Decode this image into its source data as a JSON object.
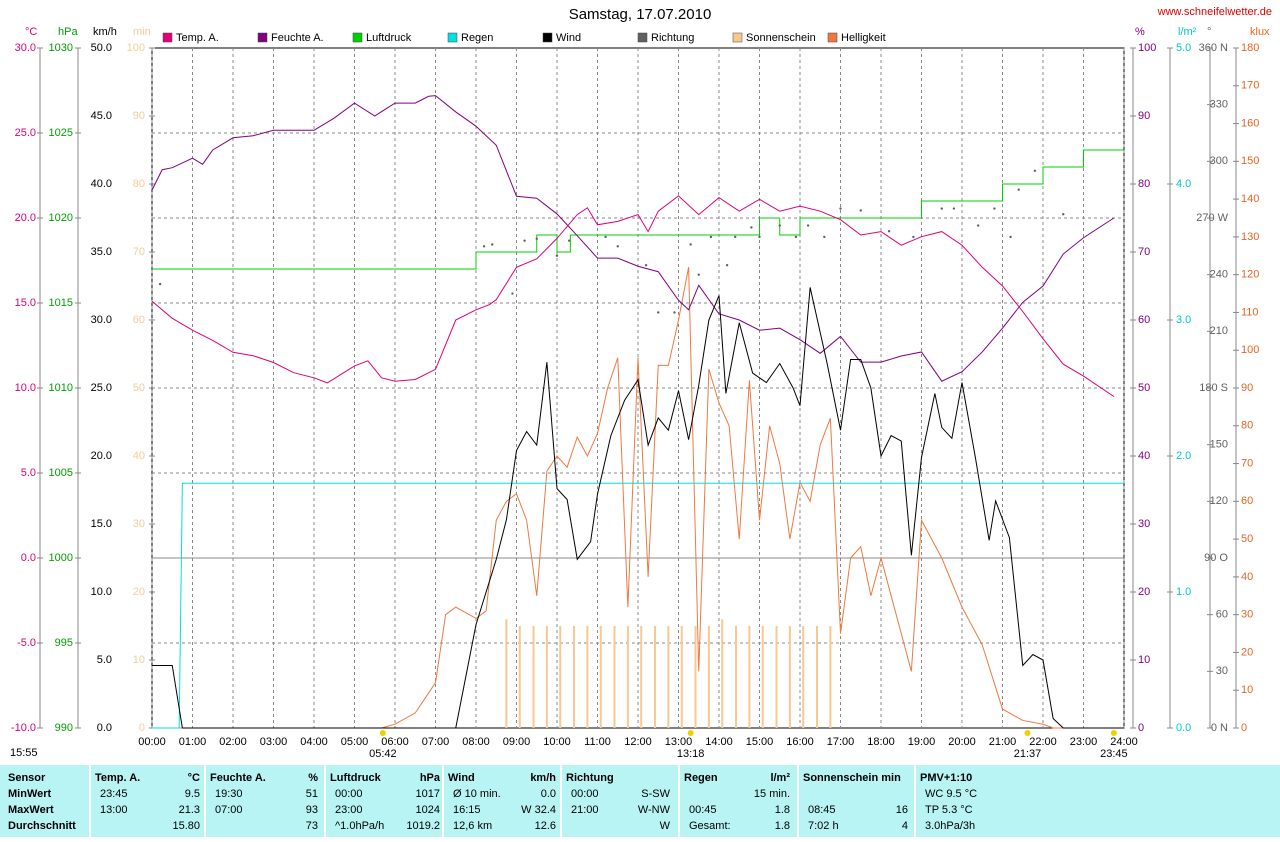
{
  "chart_data": {
    "type": "line",
    "title": "Samstag, 17.07.2010",
    "source": "www.schneifelwetter.de",
    "updated": "15:55",
    "xlim": [
      0,
      24
    ],
    "xticks": [
      {
        "value": 0,
        "label": "00:00"
      },
      {
        "value": 1,
        "label": "01:00"
      },
      {
        "value": 2,
        "label": "02:00"
      },
      {
        "value": 3,
        "label": "03:00"
      },
      {
        "value": 4,
        "label": "04:00"
      },
      {
        "value": 5,
        "label": "05:00"
      },
      {
        "value": 6,
        "label": "06:00"
      },
      {
        "value": 7,
        "label": "07:00"
      },
      {
        "value": 8,
        "label": "08:00"
      },
      {
        "value": 9,
        "label": "09:00"
      },
      {
        "value": 10,
        "label": "10:00"
      },
      {
        "value": 11,
        "label": "11:00"
      },
      {
        "value": 12,
        "label": "12:00"
      },
      {
        "value": 13,
        "label": "13:00"
      },
      {
        "value": 14,
        "label": "14:00"
      },
      {
        "value": 15,
        "label": "15:00"
      },
      {
        "value": 16,
        "label": "16:00"
      },
      {
        "value": 17,
        "label": "17:00"
      },
      {
        "value": 18,
        "label": "18:00"
      },
      {
        "value": 19,
        "label": "19:00"
      },
      {
        "value": 20,
        "label": "20:00"
      },
      {
        "value": 21,
        "label": "21:00"
      },
      {
        "value": 22,
        "label": "22:00"
      },
      {
        "value": 23,
        "label": "23:00"
      },
      {
        "value": 24,
        "label": "24:00"
      }
    ],
    "grid": true,
    "axes": [
      {
        "label": "°C",
        "side": "left",
        "color": "#e0007a",
        "lim": [
          -10,
          30
        ],
        "ticks": [
          {
            "value": -10,
            "label": "-10.0"
          },
          {
            "value": -5,
            "label": "-5.0"
          },
          {
            "value": 0,
            "label": "0.0"
          },
          {
            "value": 5,
            "label": "5.0"
          },
          {
            "value": 10,
            "label": "10.0"
          },
          {
            "value": 15,
            "label": "15.0"
          },
          {
            "value": 20,
            "label": "20.0"
          },
          {
            "value": 25,
            "label": "25.0"
          },
          {
            "value": 30,
            "label": "30.0"
          }
        ]
      },
      {
        "label": "hPa",
        "side": "left",
        "color": "#00a000",
        "lim": [
          990,
          1030
        ],
        "ticks": [
          990,
          995,
          1000,
          1005,
          1010,
          1015,
          1020,
          1025,
          1030
        ]
      },
      {
        "label": "km/h",
        "side": "left",
        "color": "#000000",
        "lim": [
          0,
          50
        ],
        "ticks": [
          {
            "value": 0,
            "label": "0.0"
          },
          {
            "value": 5,
            "label": "5.0"
          },
          {
            "value": 10,
            "label": "10.0"
          },
          {
            "value": 15,
            "label": "15.0"
          },
          {
            "value": 20,
            "label": "20.0"
          },
          {
            "value": 25,
            "label": "25.0"
          },
          {
            "value": 30,
            "label": "30.0"
          },
          {
            "value": 35,
            "label": "35.0"
          },
          {
            "value": 40,
            "label": "40.0"
          },
          {
            "value": 45,
            "label": "45.0"
          },
          {
            "value": 50,
            "label": "50.0"
          }
        ]
      },
      {
        "label": "min",
        "side": "left",
        "color": "#f5cc98",
        "lim": [
          0,
          100
        ],
        "ticks": [
          0,
          10,
          20,
          30,
          40,
          50,
          60,
          70,
          80,
          90,
          100
        ]
      },
      {
        "label": "%",
        "side": "right",
        "color": "#800080",
        "lim": [
          0,
          100
        ],
        "ticks": [
          0,
          10,
          20,
          30,
          40,
          50,
          60,
          70,
          80,
          90,
          100
        ]
      },
      {
        "label": "l/m²",
        "side": "right",
        "color": "#00c8c8",
        "lim": [
          0,
          5
        ],
        "ticks": [
          {
            "value": 0,
            "label": "0.0"
          },
          {
            "value": 1,
            "label": "1.0"
          },
          {
            "value": 2,
            "label": "2.0"
          },
          {
            "value": 3,
            "label": "3.0"
          },
          {
            "value": 4,
            "label": "4.0"
          },
          {
            "value": 5,
            "label": "5.0"
          }
        ]
      },
      {
        "label": "°",
        "side": "right",
        "color": "#606060",
        "lim": [
          0,
          360
        ],
        "ticks": [
          {
            "value": 0,
            "label": "0 N"
          },
          30,
          60,
          {
            "value": 90,
            "label": "90 O"
          },
          120,
          150,
          {
            "value": 180,
            "label": "180 S"
          },
          210,
          240,
          {
            "value": 270,
            "label": "270 W"
          },
          300,
          330,
          {
            "value": 360,
            "label": "360 N"
          }
        ]
      },
      {
        "label": "klux",
        "side": "right",
        "color": "#e86420",
        "lim": [
          0,
          180
        ],
        "ticks": [
          0,
          10,
          20,
          30,
          40,
          50,
          60,
          70,
          80,
          90,
          100,
          110,
          120,
          130,
          140,
          150,
          160,
          170,
          180
        ]
      }
    ],
    "series": [
      {
        "name": "Temp. A.",
        "color": "#e0007a",
        "axis": 0,
        "style": "line",
        "x": [
          0,
          0.5,
          1,
          1.5,
          2,
          2.5,
          3,
          3.5,
          4,
          4.33,
          5,
          5.33,
          5.67,
          6,
          6.5,
          7,
          7.5,
          8,
          8.33,
          8.5,
          9,
          9.5,
          10,
          10.5,
          10.75,
          11,
          11.5,
          12,
          12.25,
          12.5,
          13,
          13.5,
          14,
          14.5,
          15,
          15.5,
          16,
          16.5,
          17,
          17.5,
          18,
          18.5,
          19,
          19.5,
          20,
          20.5,
          21,
          21.5,
          22,
          22.5,
          23,
          23.75
        ],
        "values": [
          15.1,
          14.1,
          13.4,
          12.8,
          12.1,
          11.9,
          11.5,
          10.9,
          10.6,
          10.3,
          11.3,
          11.6,
          10.6,
          10.4,
          10.5,
          11.1,
          14.0,
          14.6,
          14.9,
          15.2,
          17.1,
          17.6,
          18.8,
          20.2,
          20.6,
          19.6,
          19.8,
          20.2,
          19.2,
          20.4,
          21.3,
          20.2,
          21.2,
          20.4,
          21.1,
          20.4,
          20.7,
          20.4,
          19.9,
          19.0,
          19.2,
          18.4,
          18.9,
          19.2,
          18.4,
          17.1,
          16.0,
          14.5,
          12.9,
          11.4,
          10.7,
          9.5
        ]
      },
      {
        "name": "Feuchte A.",
        "color": "#800080",
        "axis": 4,
        "style": "line",
        "x": [
          0,
          0.25,
          0.5,
          1,
          1.25,
          1.5,
          2,
          2.5,
          3,
          3.5,
          4,
          4.5,
          5,
          5.5,
          6,
          6.5,
          6.83,
          7,
          7.5,
          8,
          8.5,
          9,
          9.5,
          10,
          10.5,
          11,
          11.5,
          12,
          12.5,
          13,
          13.25,
          13.5,
          14,
          14.5,
          15,
          15.5,
          16,
          16.5,
          17,
          17.5,
          18,
          18.5,
          19,
          19.5,
          20,
          20.5,
          21,
          21.5,
          22,
          22.5,
          23,
          23.75
        ],
        "values": [
          79.1,
          82.1,
          82.4,
          83.8,
          82.9,
          85.0,
          86.8,
          87.1,
          87.9,
          87.9,
          87.9,
          89.7,
          91.9,
          90.0,
          91.9,
          91.9,
          92.9,
          93,
          90.6,
          88.5,
          85.7,
          78.2,
          77.9,
          75.6,
          72.4,
          69.1,
          69.1,
          67.9,
          67.1,
          62.9,
          61.5,
          65.1,
          60.9,
          60.0,
          58.5,
          58.8,
          57.1,
          55.1,
          57.6,
          53.8,
          53.8,
          54.7,
          55.3,
          51,
          52.4,
          55.3,
          58.8,
          62.6,
          65.0,
          69.7,
          72.1,
          75.0
        ]
      },
      {
        "name": "Luftdruck",
        "color": "#00d000",
        "axis": 1,
        "style": "step",
        "x": [
          0,
          8,
          9.5,
          10,
          10.33,
          15,
          15.5,
          16,
          19,
          21,
          22,
          23,
          24
        ],
        "values": [
          1017,
          1018,
          1019,
          1018,
          1019,
          1020,
          1019,
          1020,
          1021,
          1022,
          1023,
          1024,
          1024
        ]
      },
      {
        "name": "Regen",
        "color": "#00e0e0",
        "axis": 5,
        "style": "line",
        "x": [
          0,
          0.67,
          0.75,
          24
        ],
        "values": [
          0,
          0,
          1.8,
          1.8
        ]
      },
      {
        "name": "Wind",
        "color": "#000000",
        "axis": 2,
        "style": "line",
        "x": [
          0,
          0.5,
          0.75,
          7.5,
          8,
          8.5,
          8.75,
          9,
          9.25,
          9.5,
          9.75,
          10,
          10.25,
          10.5,
          10.83,
          11,
          11.33,
          11.67,
          12,
          12.25,
          12.5,
          12.75,
          13,
          13.25,
          13.5,
          13.75,
          14,
          14.17,
          14.5,
          14.83,
          15.17,
          15.5,
          15.83,
          16,
          16.25,
          16.67,
          17,
          17.25,
          17.5,
          17.75,
          18,
          18.25,
          18.5,
          18.75,
          19,
          19.33,
          19.5,
          19.75,
          20,
          20.33,
          20.67,
          20.83,
          21.17,
          21.5,
          21.75,
          22,
          22.25,
          22.5,
          24
        ],
        "values": [
          4.6,
          4.6,
          0,
          0,
          7.6,
          12.4,
          15.3,
          20.4,
          21.8,
          20.8,
          26.9,
          17.6,
          16.8,
          12.4,
          13.7,
          17.2,
          21.5,
          24.1,
          25.6,
          20.8,
          22.8,
          21.9,
          24.8,
          21.2,
          25.2,
          30.0,
          31.8,
          24.6,
          29.8,
          26.1,
          25.4,
          26.8,
          25.0,
          23.7,
          32.4,
          26.8,
          21.9,
          27.1,
          27.1,
          25.0,
          20.0,
          21.5,
          21.1,
          12.7,
          19.9,
          24.6,
          22.1,
          21.3,
          25.4,
          19.9,
          13.8,
          16.7,
          14.0,
          4.6,
          5.4,
          5.0,
          0.7,
          0,
          0
        ]
      },
      {
        "name": "Richtung",
        "color": "#606060",
        "axis": 6,
        "style": "dots",
        "x": [
          0.2,
          8.2,
          8.4,
          8.9,
          9.2,
          9.5,
          10,
          10.3,
          11.2,
          11.5,
          12.2,
          12.5,
          12.9,
          13.3,
          13.5,
          13.8,
          14.2,
          14.4,
          14.8,
          15,
          15.5,
          15.9,
          16.2,
          16.6,
          17,
          17.5,
          18.2,
          18.8,
          19.5,
          19.8,
          20.4,
          20.8,
          21.2,
          21.4,
          21.8,
          22.5
        ],
        "values": [
          235,
          255,
          256,
          230,
          258,
          259,
          250,
          258,
          260,
          255,
          245,
          220,
          220,
          256,
          240,
          260,
          245,
          260,
          265,
          260,
          266,
          260,
          266,
          260,
          275,
          274,
          263,
          260,
          275,
          275,
          266,
          275,
          260,
          285,
          295,
          272
        ]
      },
      {
        "name": "Sonnenschein",
        "color": "#f8c890",
        "axis": 3,
        "style": "bar",
        "x": [
          8.75,
          9.08,
          9.42,
          9.75,
          10.08,
          10.42,
          10.75,
          11.08,
          11.42,
          11.75,
          12.08,
          12.42,
          12.75,
          13.08,
          13.42,
          13.75,
          14.08,
          14.42,
          14.75,
          15.08,
          15.42,
          15.75,
          16.08,
          16.42,
          16.75
        ],
        "values": [
          16,
          15,
          15,
          15,
          15,
          15,
          15,
          15,
          15,
          15,
          15,
          15,
          15,
          15,
          15,
          15,
          16,
          15,
          15,
          15,
          15,
          15,
          15,
          15,
          15
        ]
      },
      {
        "name": "Helligkeit",
        "color": "#f07840",
        "axis": 7,
        "style": "line",
        "x": [
          0,
          5.67,
          6,
          6.5,
          7,
          7.25,
          7.5,
          8,
          8.25,
          8.5,
          8.75,
          9,
          9.25,
          9.5,
          9.75,
          10,
          10.25,
          10.5,
          10.75,
          11,
          11.25,
          11.5,
          11.75,
          12,
          12.25,
          12.5,
          12.75,
          13,
          13.25,
          13.5,
          13.75,
          14,
          14.25,
          14.5,
          14.75,
          15,
          15.25,
          15.5,
          15.75,
          16,
          16.25,
          16.5,
          16.75,
          17,
          17.25,
          17.5,
          17.75,
          18,
          18.5,
          18.75,
          19,
          19.5,
          20,
          20.5,
          21,
          21.5,
          22,
          22.25,
          24
        ],
        "values": [
          0,
          0,
          1,
          4,
          12,
          30,
          32,
          29,
          31,
          55,
          60,
          62,
          55,
          35,
          68,
          72,
          69,
          77,
          72,
          78,
          90,
          98,
          32,
          98,
          40,
          96,
          96,
          108,
          122,
          15,
          95,
          86,
          80,
          50,
          92,
          55,
          80,
          70,
          50,
          65,
          60,
          75,
          82,
          25,
          45,
          48,
          35,
          45,
          25,
          15,
          55,
          45,
          32,
          22,
          5,
          2,
          1,
          0,
          0
        ]
      }
    ],
    "annotations": [
      {
        "x": 5.7,
        "text": "05:42"
      },
      {
        "x": 13.3,
        "text": "13:18"
      },
      {
        "x": 21.617,
        "text": "21:37"
      },
      {
        "x": 23.75,
        "text": "23:45"
      }
    ]
  },
  "table": {
    "columns": [
      {
        "title": "Sensor"
      },
      {
        "title": "Temp. A.",
        "unit": "°C"
      },
      {
        "title": "Feuchte A.",
        "unit": "%"
      },
      {
        "title": "Luftdruck",
        "unit": "hPa"
      },
      {
        "title": "Wind",
        "unit": "km/h"
      },
      {
        "title": "Richtung"
      },
      {
        "title": "Regen",
        "unit": "l/m²"
      },
      {
        "title": "Sonnenschein min"
      },
      {
        "title": "PMV+1:10"
      }
    ],
    "rows": [
      {
        "label": "MinWert",
        "cells": [
          [
            "23:45",
            "9.5"
          ],
          [
            "19:30",
            "51"
          ],
          [
            "00:00",
            "1017"
          ],
          [
            "Ø 10 min.",
            "0.0"
          ],
          [
            "00:00",
            "S-SW"
          ],
          [
            "15 min."
          ],
          [],
          [
            "WC 9.5 °C"
          ]
        ]
      },
      {
        "label": "MaxWert",
        "cells": [
          [
            "13:00",
            "21.3"
          ],
          [
            "07:00",
            "93"
          ],
          [
            "23:00",
            "1024"
          ],
          [
            "16:15",
            "W 32.4"
          ],
          [
            "21:00",
            "W-NW"
          ],
          [
            "00:45",
            "1.8"
          ],
          [
            "08:45",
            "16"
          ],
          [
            "TP 5.3 °C"
          ]
        ]
      },
      {
        "label": "Durchschnitt",
        "cells": [
          [
            "15.80"
          ],
          [
            "73"
          ],
          [
            "^1.0hPa/h",
            "1019.2"
          ],
          [
            "12,6 km",
            "12.6"
          ],
          [
            "W"
          ],
          [
            "Gesamt:",
            "1.8"
          ],
          [
            "7:02 h",
            "4"
          ],
          [
            "3.0hPa/3h"
          ]
        ]
      }
    ]
  }
}
